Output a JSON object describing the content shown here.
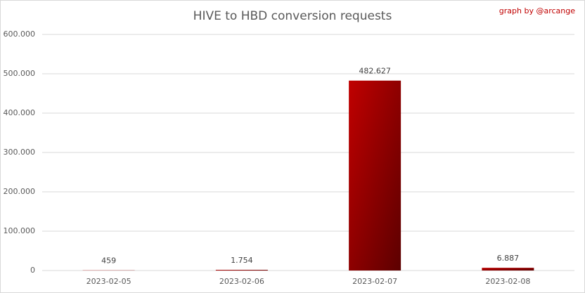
{
  "chart_data": {
    "type": "bar",
    "title": "HIVE to HBD conversion requests",
    "annotation": "graph by @arcange",
    "categories": [
      "2023-02-05",
      "2023-02-06",
      "2023-02-07",
      "2023-02-08"
    ],
    "values": [
      459,
      1754,
      482627,
      6887
    ],
    "value_labels": [
      "459",
      "1.754",
      "482.627",
      "6.887"
    ],
    "color": "#c00000",
    "ylim": [
      0,
      600000
    ],
    "yticks": [
      0,
      {
        "value": 100000,
        "label": "100.000"
      },
      {
        "value": 200000,
        "label": "200.000"
      },
      {
        "value": 300000,
        "label": "300.000"
      },
      {
        "value": 400000,
        "label": "400.000"
      },
      {
        "value": 500000,
        "label": "500.000"
      },
      {
        "value": 600000,
        "label": "600.000"
      }
    ],
    "grid": true
  }
}
